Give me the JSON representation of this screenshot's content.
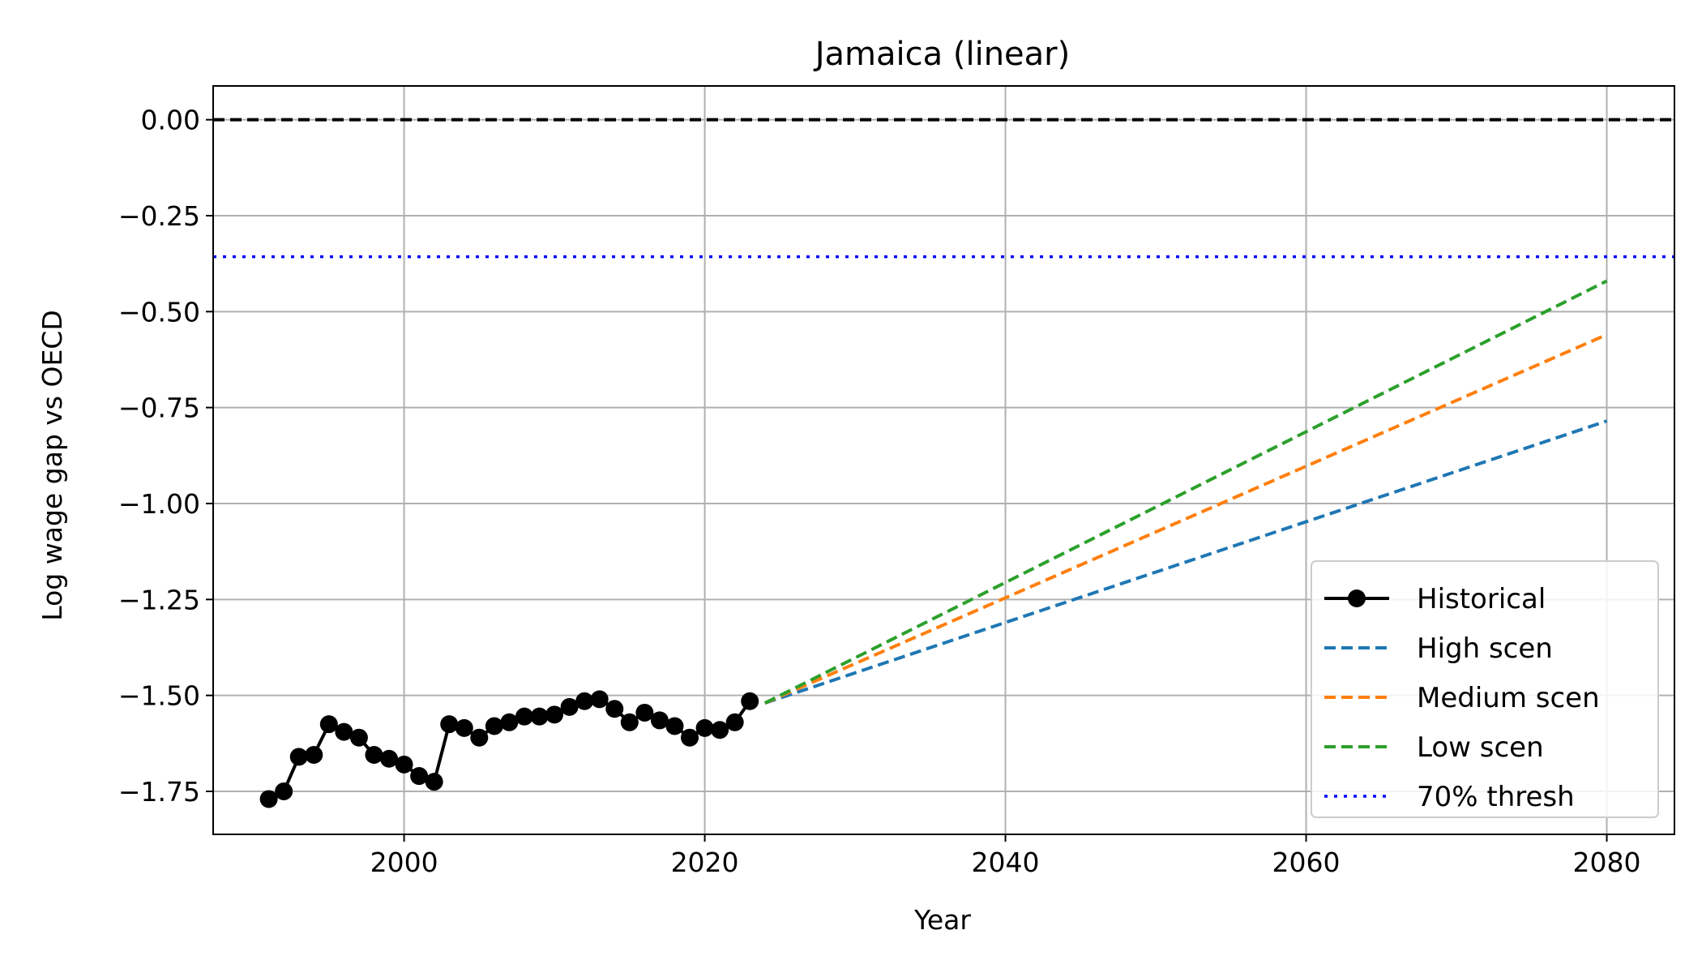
{
  "chart_data": {
    "type": "line",
    "title": "Jamaica (linear)",
    "xlabel": "Year",
    "ylabel": "Log wage gap vs OECD",
    "xlim": [
      1987.3,
      2084.5
    ],
    "ylim": [
      -1.862,
      0.088
    ],
    "xticks": [
      2000,
      2020,
      2040,
      2060,
      2080
    ],
    "yticks": [
      0.0,
      -0.25,
      -0.5,
      -0.75,
      -1.0,
      -1.25,
      -1.5,
      -1.75
    ],
    "ytick_labels": [
      "0.00",
      "−0.25",
      "−0.50",
      "−0.75",
      "−1.00",
      "−1.25",
      "−1.50",
      "−1.75"
    ],
    "grid": true,
    "legend_position": "lower-right",
    "reference_lines": [
      {
        "y": 0.0,
        "color": "#000000",
        "style": "dashed"
      },
      {
        "y": -0.357,
        "color": "#0000ff",
        "style": "dotted",
        "name": "70% thresh"
      }
    ],
    "series": [
      {
        "name": "Historical",
        "color": "#000000",
        "style": "solid-markers",
        "x": [
          1991,
          1992,
          1993,
          1994,
          1995,
          1996,
          1997,
          1998,
          1999,
          2000,
          2001,
          2002,
          2003,
          2004,
          2005,
          2006,
          2007,
          2008,
          2009,
          2010,
          2011,
          2012,
          2013,
          2014,
          2015,
          2016,
          2017,
          2018,
          2019,
          2020,
          2021,
          2022,
          2023
        ],
        "y": [
          -1.77,
          -1.75,
          -1.66,
          -1.655,
          -1.575,
          -1.595,
          -1.61,
          -1.655,
          -1.665,
          -1.68,
          -1.71,
          -1.725,
          -1.575,
          -1.585,
          -1.61,
          -1.58,
          -1.57,
          -1.555,
          -1.555,
          -1.55,
          -1.53,
          -1.515,
          -1.51,
          -1.535,
          -1.57,
          -1.545,
          -1.565,
          -1.58,
          -1.61,
          -1.585,
          -1.59,
          -1.57,
          -1.515
        ]
      },
      {
        "name": "High scen",
        "color": "#1f77b4",
        "style": "dashed",
        "x": [
          2024,
          2080
        ],
        "y": [
          -1.52,
          -0.785
        ]
      },
      {
        "name": "Medium scen",
        "color": "#ff7f0e",
        "style": "dashed",
        "x": [
          2024,
          2080
        ],
        "y": [
          -1.52,
          -0.56
        ]
      },
      {
        "name": "Low scen",
        "color": "#2ca02c",
        "style": "dashed",
        "x": [
          2024,
          2080
        ],
        "y": [
          -1.52,
          -0.42
        ]
      }
    ],
    "legend": [
      {
        "label": "Historical",
        "color": "#000000",
        "style": "solid-markers"
      },
      {
        "label": "High scen",
        "color": "#1f77b4",
        "style": "dashed"
      },
      {
        "label": "Medium scen",
        "color": "#ff7f0e",
        "style": "dashed"
      },
      {
        "label": "Low scen",
        "color": "#2ca02c",
        "style": "dashed"
      },
      {
        "label": "70% thresh",
        "color": "#0000ff",
        "style": "dotted"
      }
    ]
  }
}
